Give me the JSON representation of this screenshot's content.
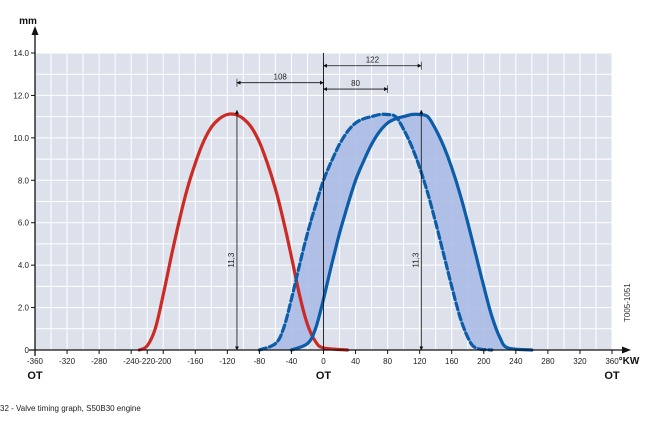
{
  "caption": "32 -   Valve timing graph, S50B30 engine",
  "side_code": "T005-1051",
  "colors": {
    "plot_bg": "#dde1ec",
    "grid": "#ffffff",
    "intake": "#cc2a24",
    "exhaust": "#0c5ca8",
    "band_fill": "#a7b8e4"
  },
  "chart_data": {
    "type": "line",
    "title": "",
    "xunit": "°KW",
    "yunit": "mm",
    "xlim": [
      -360,
      360
    ],
    "ylim": [
      0,
      14
    ],
    "x_ticks": [
      -360,
      -320,
      -280,
      -240,
      -220,
      -200,
      -160,
      -120,
      -80,
      -40,
      0,
      40,
      80,
      120,
      160,
      200,
      240,
      280,
      320,
      360
    ],
    "x_tick_labels": [
      "-360",
      "-320",
      "-280",
      "-240",
      "-220",
      "-200",
      "-160",
      "-120",
      "-80",
      "-40",
      "0",
      "40",
      "80",
      "120",
      "160",
      "200",
      "240",
      "280",
      "320",
      "360"
    ],
    "y_ticks": [
      0,
      2,
      4,
      6,
      8,
      10,
      12,
      14
    ],
    "y_tick_labels": [
      "0",
      "2.0",
      "4.0",
      "6.0",
      "8.0",
      "10.0",
      "12.0",
      "14.0"
    ],
    "ot_markers": [
      {
        "x": -360,
        "label": "OT"
      },
      {
        "x": 0,
        "label": "OT"
      },
      {
        "x": 360,
        "label": "OT"
      }
    ],
    "series": [
      {
        "style": "solid",
        "color": "#cc2a24",
        "points": [
          [
            -230,
            0
          ],
          [
            -220,
            0.2
          ],
          [
            -210,
            1.0
          ],
          [
            -200,
            2.6
          ],
          [
            -190,
            4.4
          ],
          [
            -180,
            6.1
          ],
          [
            -170,
            7.6
          ],
          [
            -160,
            8.8
          ],
          [
            -150,
            9.8
          ],
          [
            -140,
            10.5
          ],
          [
            -130,
            10.9
          ],
          [
            -120,
            11.1
          ],
          [
            -110,
            11.1
          ],
          [
            -100,
            10.9
          ],
          [
            -90,
            10.5
          ],
          [
            -80,
            9.8
          ],
          [
            -70,
            8.8
          ],
          [
            -60,
            7.6
          ],
          [
            -50,
            6.1
          ],
          [
            -40,
            4.4
          ],
          [
            -30,
            2.6
          ],
          [
            -20,
            1.2
          ],
          [
            -10,
            0.4
          ],
          [
            0,
            0.1
          ],
          [
            30,
            0
          ]
        ]
      },
      {
        "style": "dashed",
        "color": "#0c5ca8",
        "points": [
          [
            -80,
            0
          ],
          [
            -60,
            0.3
          ],
          [
            -50,
            1.0
          ],
          [
            -40,
            2.4
          ],
          [
            -30,
            4.0
          ],
          [
            -20,
            5.5
          ],
          [
            -10,
            6.8
          ],
          [
            0,
            8.0
          ],
          [
            10,
            8.9
          ],
          [
            20,
            9.7
          ],
          [
            30,
            10.3
          ],
          [
            40,
            10.7
          ],
          [
            50,
            10.9
          ],
          [
            60,
            11.0
          ],
          [
            70,
            11.1
          ],
          [
            80,
            11.1
          ],
          [
            90,
            11.0
          ],
          [
            100,
            10.4
          ],
          [
            110,
            9.6
          ],
          [
            120,
            8.6
          ],
          [
            130,
            7.4
          ],
          [
            140,
            6.0
          ],
          [
            150,
            4.5
          ],
          [
            160,
            3.0
          ],
          [
            170,
            1.6
          ],
          [
            180,
            0.6
          ],
          [
            190,
            0.1
          ],
          [
            210,
            0
          ]
        ]
      },
      {
        "style": "solid",
        "color": "#0c5ca8",
        "points": [
          [
            -40,
            0
          ],
          [
            -20,
            0.3
          ],
          [
            -10,
            1.0
          ],
          [
            0,
            2.4
          ],
          [
            10,
            4.0
          ],
          [
            20,
            5.5
          ],
          [
            30,
            6.8
          ],
          [
            40,
            8.0
          ],
          [
            50,
            8.9
          ],
          [
            60,
            9.7
          ],
          [
            70,
            10.3
          ],
          [
            80,
            10.7
          ],
          [
            90,
            10.9
          ],
          [
            100,
            11.0
          ],
          [
            110,
            11.1
          ],
          [
            120,
            11.1
          ],
          [
            130,
            11.0
          ],
          [
            140,
            10.4
          ],
          [
            150,
            9.6
          ],
          [
            160,
            8.6
          ],
          [
            170,
            7.4
          ],
          [
            180,
            6.0
          ],
          [
            190,
            4.5
          ],
          [
            200,
            3.0
          ],
          [
            210,
            1.6
          ],
          [
            220,
            0.6
          ],
          [
            230,
            0.1
          ],
          [
            260,
            0
          ]
        ]
      }
    ],
    "annotations": [
      {
        "type": "h_dim",
        "from": -108,
        "to": 0,
        "y": 12.6,
        "label": "108"
      },
      {
        "type": "h_dim",
        "from": 0,
        "to": 122,
        "y": 13.4,
        "label": "122"
      },
      {
        "type": "h_dim",
        "from": 0,
        "to": 80,
        "y": 12.3,
        "label": "80"
      },
      {
        "type": "v_dim",
        "x": -108,
        "from": 0,
        "to": 11.3,
        "label": "11,3"
      },
      {
        "type": "v_dim",
        "x": 122,
        "from": 0,
        "to": 11.3,
        "label": "11,3"
      }
    ]
  }
}
